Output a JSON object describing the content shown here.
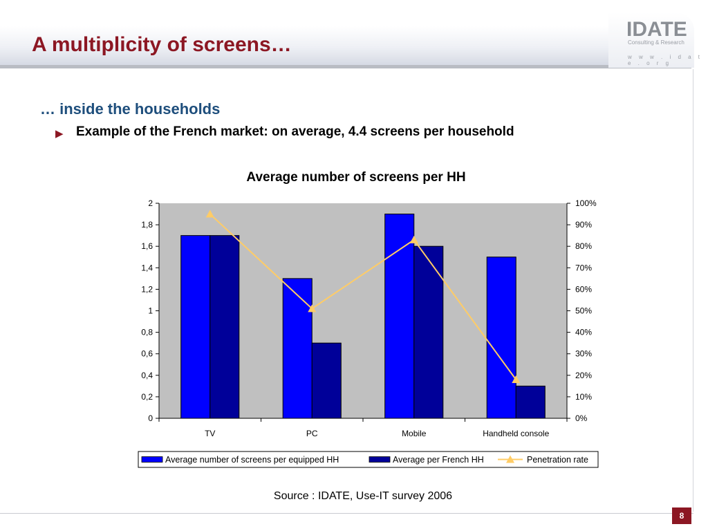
{
  "slide": {
    "title": "A multiplicity of screens…",
    "subtitle": "… inside the households",
    "bullet": "Example of the French market: on average, 4.4 screens per household",
    "source": "Source : IDATE, Use-IT survey 2006",
    "page_number": "8"
  },
  "logo": {
    "name": "IDATE",
    "tagline": "Consulting & Research",
    "url": "w w w . i d a t e . o r g"
  },
  "icons": {
    "bullet": "triangle-right-icon"
  },
  "colors": {
    "title": "#8c1723",
    "subtitle": "#1e4e7c",
    "series_equipped": "#0000ff",
    "series_french": "#000099",
    "series_penetration": "#ffcc66",
    "plot_background": "#c0c0c0"
  },
  "chart_data": {
    "type": "bar",
    "title": "Average number of screens per HH",
    "categories": [
      "TV",
      "PC",
      "Mobile",
      "Handheld console"
    ],
    "series": [
      {
        "name": "Average number of screens per equipped HH",
        "type": "bar",
        "axis": "left",
        "values": [
          1.7,
          1.3,
          1.9,
          1.5
        ]
      },
      {
        "name": "Average per French HH",
        "type": "bar",
        "axis": "left",
        "values": [
          1.7,
          0.7,
          1.6,
          0.3
        ]
      },
      {
        "name": "Penetration rate",
        "type": "line",
        "axis": "right",
        "marker": "triangle",
        "values": [
          95,
          51,
          83,
          18
        ]
      }
    ],
    "ylim": [
      0,
      2
    ],
    "yticks": [
      "0",
      "0,2",
      "0,4",
      "0,6",
      "0,8",
      "1",
      "1,2",
      "1,4",
      "1,6",
      "1,8",
      "2"
    ],
    "y2lim": [
      0,
      100
    ],
    "y2ticks": [
      "0%",
      "10%",
      "20%",
      "30%",
      "40%",
      "50%",
      "60%",
      "70%",
      "80%",
      "90%",
      "100%"
    ],
    "grid": false,
    "legend": "bottom"
  }
}
